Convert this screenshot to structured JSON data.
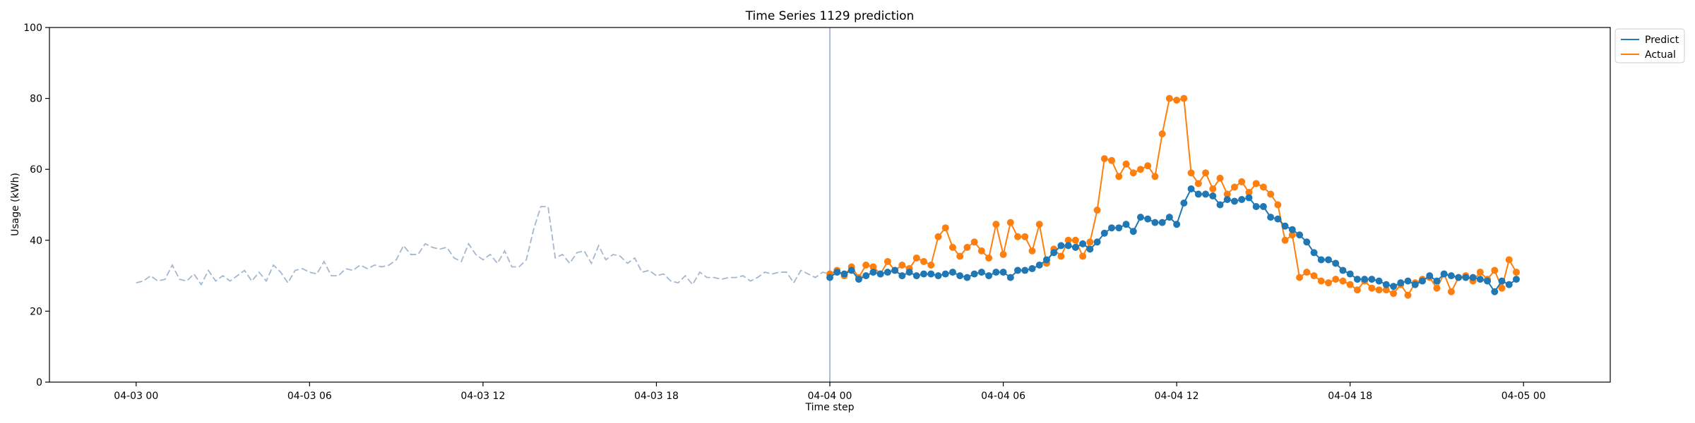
{
  "chart_data": {
    "type": "line",
    "title": "Time Series 1129 prediction",
    "xlabel": "Time step",
    "ylabel": "Usage (kWh)",
    "ylim": [
      0,
      100
    ],
    "xlim": [
      "2024-04-02T21:00",
      "2024-04-05T03:00"
    ],
    "x_ticks": [
      {
        "label": "04-03 00",
        "t": "2024-04-03T00:00"
      },
      {
        "label": "04-03 06",
        "t": "2024-04-03T06:00"
      },
      {
        "label": "04-03 12",
        "t": "2024-04-03T12:00"
      },
      {
        "label": "04-03 18",
        "t": "2024-04-03T18:00"
      },
      {
        "label": "04-04 00",
        "t": "2024-04-04T00:00"
      },
      {
        "label": "04-04 06",
        "t": "2024-04-04T06:00"
      },
      {
        "label": "04-04 12",
        "t": "2024-04-04T12:00"
      },
      {
        "label": "04-04 18",
        "t": "2024-04-04T18:00"
      },
      {
        "label": "04-05 00",
        "t": "2024-04-05T00:00"
      }
    ],
    "y_ticks": [
      0,
      20,
      40,
      60,
      80,
      100
    ],
    "grid": false,
    "legend_position": "upper-right-outside",
    "forecast_start": "2024-04-04T00:00",
    "history": {
      "start": "2024-04-03T00:00",
      "step_minutes": 15,
      "color": "#a3b8cf",
      "values": [
        28.0,
        28.5,
        30.0,
        28.5,
        29.0,
        33.0,
        29.0,
        28.5,
        30.5,
        27.5,
        31.5,
        28.5,
        30.0,
        28.5,
        30.0,
        31.5,
        28.5,
        31.0,
        28.5,
        33.0,
        31.0,
        28.0,
        31.5,
        32.0,
        31.0,
        30.5,
        34.0,
        30.0,
        30.0,
        32.0,
        31.5,
        33.0,
        32.0,
        33.0,
        32.5,
        33.0,
        34.5,
        38.5,
        36.0,
        36.0,
        39.0,
        38.0,
        37.5,
        38.0,
        35.0,
        34.0,
        39.0,
        36.0,
        34.5,
        36.0,
        33.5,
        37.0,
        32.5,
        32.5,
        34.5,
        43.0,
        49.5,
        49.5,
        35.0,
        36.0,
        33.5,
        36.5,
        37.0,
        33.5,
        38.5,
        34.5,
        36.0,
        35.5,
        33.5,
        35.0,
        31.0,
        31.5,
        30.0,
        30.5,
        28.5,
        28.0,
        30.0,
        27.5,
        31.0,
        29.5,
        29.5,
        29.0,
        29.5,
        29.5,
        30.0,
        28.5,
        29.5,
        31.0,
        30.5,
        31.0,
        31.0,
        28.0,
        31.5,
        30.5,
        29.5,
        31.0,
        30.5
      ]
    },
    "series": [
      {
        "name": "Predict",
        "color": "#1f77b4",
        "start": "2024-04-04T00:00",
        "step_minutes": 15,
        "values": [
          29.5,
          31.0,
          30.5,
          31.5,
          29.0,
          30.0,
          31.0,
          30.5,
          31.0,
          31.5,
          30.0,
          31.0,
          30.0,
          30.5,
          30.5,
          30.0,
          30.5,
          31.0,
          30.0,
          29.5,
          30.5,
          31.0,
          30.0,
          31.0,
          31.0,
          29.5,
          31.5,
          31.5,
          32.0,
          33.0,
          34.5,
          36.5,
          38.5,
          38.5,
          38.0,
          39.0,
          37.5,
          39.5,
          42.0,
          43.5,
          43.5,
          44.5,
          42.5,
          46.5,
          46.0,
          45.0,
          45.0,
          46.5,
          44.5,
          50.5,
          54.5,
          53.0,
          53.0,
          52.5,
          50.0,
          51.5,
          51.0,
          51.5,
          52.0,
          49.5,
          49.5,
          46.5,
          46.0,
          44.0,
          43.0,
          41.5,
          39.5,
          36.5,
          34.5,
          34.5,
          33.5,
          31.5,
          30.5,
          29.0,
          29.0,
          29.0,
          28.5,
          27.5,
          27.0,
          28.0,
          28.5,
          27.5,
          28.5,
          30.0,
          28.5,
          30.5,
          30.0,
          29.5,
          29.5,
          29.5,
          29.0,
          28.5,
          25.5,
          28.5,
          27.5,
          29.0
        ]
      },
      {
        "name": "Actual",
        "color": "#ff7f0e",
        "start": "2024-04-04T00:00",
        "step_minutes": 15,
        "values": [
          30.5,
          31.5,
          30.0,
          32.5,
          29.5,
          33.0,
          32.5,
          30.5,
          34.0,
          31.5,
          33.0,
          32.0,
          35.0,
          34.0,
          33.0,
          41.0,
          43.5,
          38.0,
          35.5,
          38.0,
          39.5,
          37.0,
          35.0,
          44.5,
          36.0,
          45.0,
          41.0,
          41.0,
          37.0,
          44.5,
          33.5,
          37.5,
          35.5,
          40.0,
          40.0,
          35.5,
          39.5,
          48.5,
          63.0,
          62.5,
          58.0,
          61.5,
          59.0,
          60.0,
          61.0,
          58.0,
          70.0,
          80.0,
          79.5,
          80.0,
          59.0,
          56.0,
          59.0,
          54.5,
          57.5,
          53.0,
          55.0,
          56.5,
          53.5,
          56.0,
          55.0,
          53.0,
          50.0,
          40.0,
          41.5,
          29.5,
          31.0,
          30.0,
          28.5,
          28.0,
          29.0,
          28.5,
          27.5,
          26.0,
          28.5,
          26.5,
          26.0,
          26.0,
          25.0,
          27.5,
          24.5,
          28.0,
          29.0,
          29.5,
          26.5,
          30.5,
          25.5,
          29.5,
          30.0,
          28.5,
          31.0,
          29.0,
          31.5,
          26.5,
          34.5,
          31.0
        ]
      }
    ]
  }
}
